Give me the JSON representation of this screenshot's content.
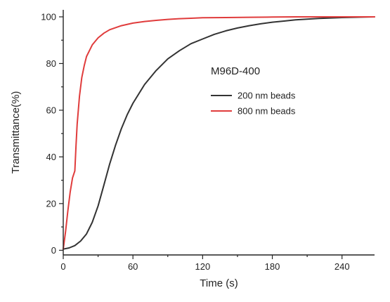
{
  "chart_data": {
    "type": "line",
    "annotation": "M96D-400",
    "xlabel": "Time (s)",
    "ylabel": "Transmittance(%)",
    "xlim": [
      0,
      268
    ],
    "ylim": [
      -2,
      103
    ],
    "xticks": [
      0,
      60,
      120,
      180,
      240
    ],
    "yticks": [
      0,
      20,
      40,
      60,
      80,
      100
    ],
    "grid": false,
    "legend_position": "middle-right",
    "series": [
      {
        "name": "200 nm beads",
        "color": "#333333",
        "x": [
          0,
          5,
          10,
          15,
          20,
          25,
          30,
          35,
          40,
          45,
          50,
          55,
          60,
          70,
          80,
          90,
          100,
          110,
          120,
          130,
          140,
          150,
          160,
          170,
          180,
          190,
          200,
          210,
          220,
          230,
          240,
          250,
          260,
          268
        ],
        "y": [
          0.5,
          1.0,
          2.0,
          4.0,
          7.0,
          12.0,
          19.0,
          28.0,
          37.0,
          45.0,
          52.0,
          58.0,
          63.0,
          71.0,
          77.0,
          82.0,
          85.5,
          88.5,
          90.5,
          92.5,
          94.0,
          95.2,
          96.2,
          97.0,
          97.7,
          98.2,
          98.7,
          99.0,
          99.3,
          99.5,
          99.7,
          99.8,
          99.9,
          100.0
        ]
      },
      {
        "name": "800 nm beads",
        "color": "#e03c3c",
        "x": [
          0,
          2,
          4,
          6,
          8,
          10,
          11,
          12,
          14,
          16,
          18,
          20,
          25,
          30,
          35,
          40,
          50,
          60,
          70,
          80,
          90,
          100,
          110,
          120,
          140,
          160,
          180,
          200,
          220,
          240,
          268
        ],
        "y": [
          0.5,
          8.0,
          17.0,
          25.0,
          31.0,
          34.0,
          45.0,
          54.0,
          66.0,
          74.0,
          79.0,
          83.0,
          88.0,
          91.0,
          93.0,
          94.5,
          96.2,
          97.3,
          98.0,
          98.5,
          98.9,
          99.2,
          99.4,
          99.6,
          99.7,
          99.8,
          99.9,
          100.0,
          100.0,
          100.0,
          100.0
        ]
      }
    ]
  }
}
